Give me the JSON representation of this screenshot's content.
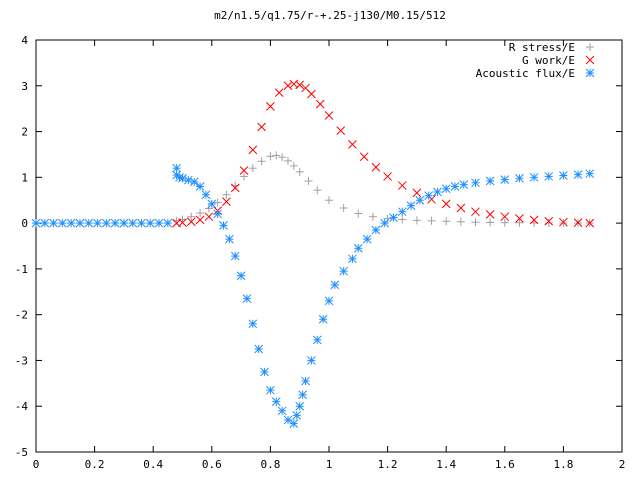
{
  "chart_data": {
    "type": "scatter",
    "title": "m2/n1.5/q1.75/r-+.25-j130/M0.15/512",
    "xlabel": "",
    "ylabel": "",
    "xlim": [
      0,
      2
    ],
    "ylim": [
      -5,
      4
    ],
    "x_ticks": [
      "0",
      "0.2",
      "0.4",
      "0.6",
      "0.8",
      "1",
      "1.2",
      "1.4",
      "1.6",
      "1.8",
      "2"
    ],
    "y_ticks": [
      "4",
      "3",
      "2",
      "1",
      "0",
      "-1",
      "-2",
      "-3",
      "-4",
      "-5"
    ],
    "grid": false,
    "legend_position": "top-right",
    "series": [
      {
        "name": "R stress/E",
        "marker": "plus",
        "color": "#a0a0a0",
        "x": [
          0.48,
          0.5,
          0.53,
          0.56,
          0.59,
          0.62,
          0.65,
          0.68,
          0.71,
          0.74,
          0.77,
          0.8,
          0.82,
          0.84,
          0.86,
          0.88,
          0.9,
          0.93,
          0.96,
          1.0,
          1.05,
          1.1,
          1.15,
          1.2,
          1.25,
          1.3,
          1.35,
          1.4,
          1.45,
          1.5,
          1.55,
          1.6,
          1.65,
          1.7,
          1.75,
          1.8,
          1.85,
          1.89
        ],
        "y": [
          0.05,
          0.08,
          0.14,
          0.22,
          0.32,
          0.45,
          0.62,
          0.82,
          1.02,
          1.2,
          1.35,
          1.46,
          1.48,
          1.44,
          1.36,
          1.25,
          1.12,
          0.92,
          0.72,
          0.5,
          0.33,
          0.21,
          0.14,
          0.1,
          0.08,
          0.06,
          0.05,
          0.04,
          0.03,
          0.02,
          0.015,
          0.01,
          0.008,
          0.006,
          0.004,
          0.003,
          0.002,
          0.001
        ]
      },
      {
        "name": "G work/E",
        "marker": "cross",
        "color": "#ff0000",
        "x": [
          0.48,
          0.5,
          0.53,
          0.56,
          0.59,
          0.62,
          0.65,
          0.68,
          0.71,
          0.74,
          0.77,
          0.8,
          0.83,
          0.86,
          0.88,
          0.9,
          0.92,
          0.94,
          0.97,
          1.0,
          1.04,
          1.08,
          1.12,
          1.16,
          1.2,
          1.25,
          1.3,
          1.35,
          1.4,
          1.45,
          1.5,
          1.55,
          1.6,
          1.65,
          1.7,
          1.75,
          1.8,
          1.85,
          1.89
        ],
        "y": [
          0.0,
          0.01,
          0.03,
          0.07,
          0.14,
          0.27,
          0.47,
          0.77,
          1.15,
          1.6,
          2.1,
          2.55,
          2.85,
          3.0,
          3.04,
          3.02,
          2.95,
          2.82,
          2.6,
          2.35,
          2.02,
          1.72,
          1.45,
          1.22,
          1.02,
          0.82,
          0.66,
          0.52,
          0.42,
          0.33,
          0.25,
          0.19,
          0.14,
          0.1,
          0.07,
          0.04,
          0.02,
          0.01,
          0.0
        ]
      },
      {
        "name": "Acoustic flux/E",
        "marker": "star",
        "color": "#1e8fff",
        "x": [
          0.0,
          0.03,
          0.06,
          0.09,
          0.12,
          0.15,
          0.18,
          0.21,
          0.24,
          0.27,
          0.3,
          0.33,
          0.36,
          0.39,
          0.42,
          0.45,
          0.48,
          0.48,
          0.49,
          0.5,
          0.52,
          0.54,
          0.56,
          0.58,
          0.6,
          0.62,
          0.64,
          0.66,
          0.68,
          0.7,
          0.72,
          0.74,
          0.76,
          0.78,
          0.8,
          0.82,
          0.84,
          0.86,
          0.88,
          0.89,
          0.9,
          0.91,
          0.92,
          0.94,
          0.96,
          0.98,
          1.0,
          1.02,
          1.05,
          1.08,
          1.1,
          1.13,
          1.16,
          1.19,
          1.22,
          1.25,
          1.28,
          1.31,
          1.34,
          1.37,
          1.4,
          1.43,
          1.46,
          1.5,
          1.55,
          1.6,
          1.65,
          1.7,
          1.75,
          1.8,
          1.85,
          1.89
        ],
        "y": [
          0.0,
          0.0,
          0.0,
          0.0,
          0.0,
          0.0,
          0.0,
          0.0,
          0.0,
          0.0,
          0.0,
          0.0,
          0.0,
          0.0,
          0.0,
          0.0,
          1.2,
          1.05,
          1.0,
          0.98,
          0.94,
          0.9,
          0.8,
          0.62,
          0.42,
          0.2,
          -0.05,
          -0.35,
          -0.72,
          -1.15,
          -1.65,
          -2.2,
          -2.75,
          -3.25,
          -3.65,
          -3.9,
          -4.1,
          -4.3,
          -4.38,
          -4.2,
          -4.0,
          -3.75,
          -3.45,
          -3.0,
          -2.55,
          -2.1,
          -1.7,
          -1.35,
          -1.05,
          -0.78,
          -0.55,
          -0.35,
          -0.15,
          0.0,
          0.12,
          0.25,
          0.38,
          0.5,
          0.6,
          0.68,
          0.75,
          0.8,
          0.84,
          0.88,
          0.92,
          0.95,
          0.98,
          1.0,
          1.02,
          1.04,
          1.06,
          1.08
        ]
      }
    ]
  }
}
